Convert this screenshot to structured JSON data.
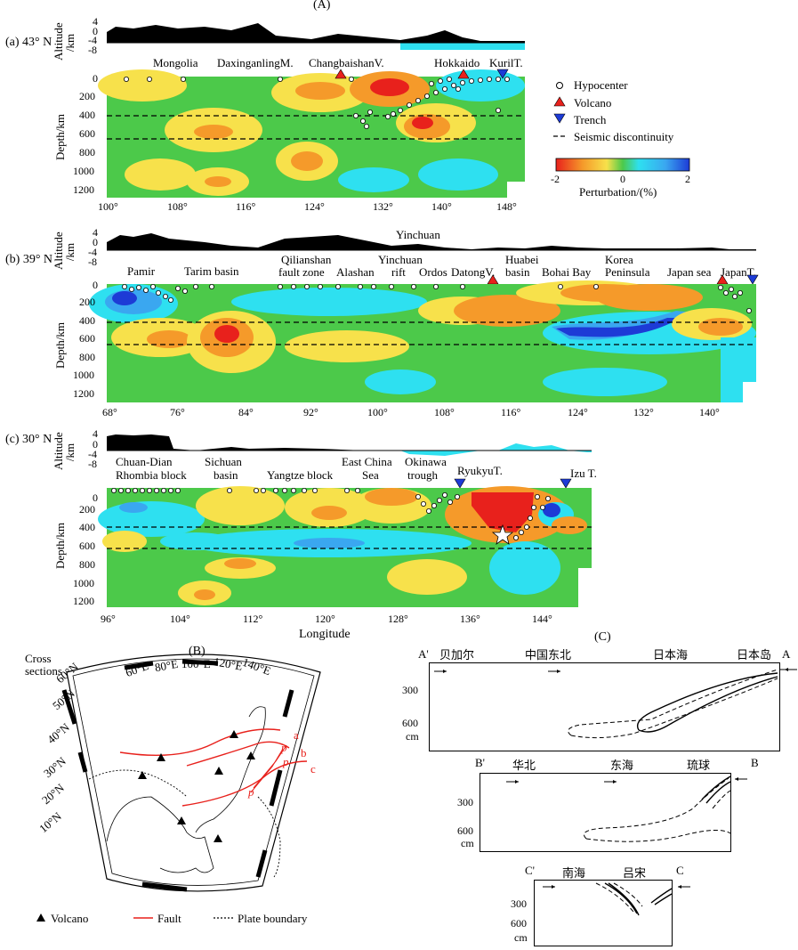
{
  "figure_labels": {
    "A": "(A)",
    "B": "(B)",
    "C": "(C)"
  },
  "panel_a": {
    "label": "(a) 43° N",
    "altitude_label": "Altitude\n/km",
    "altitude_ticks": [
      "4",
      "0",
      "-4",
      "-8"
    ],
    "depth_ticks": [
      "0",
      "200",
      "400",
      "600",
      "800",
      "1000",
      "1200"
    ],
    "depth_label": "Depth/km",
    "lon_ticks": [
      "100°",
      "108°",
      "116°",
      "124°",
      "132°",
      "140°",
      "148°"
    ],
    "places": [
      "Mongolia",
      "DaxinganlingM.",
      "ChangbaishanV.",
      "Hokkaido",
      "KurilT."
    ]
  },
  "legend": {
    "hypocenter": "Hypocenter",
    "volcano": "Volcano",
    "trench": "Trench",
    "discontinuity": "Seismic discontinuity",
    "scale_ticks": [
      "-2",
      "0",
      "2"
    ],
    "scale_label": "Perturbation/(%)"
  },
  "panel_b": {
    "label": "(b) 39° N",
    "altitude_ticks": [
      "4",
      "0",
      "-4",
      "-8"
    ],
    "depth_ticks": [
      "0",
      "200",
      "400",
      "600",
      "800",
      "1000",
      "1200"
    ],
    "depth_label": "Depth/km",
    "lon_ticks": [
      "68°",
      "76°",
      "84°",
      "92°",
      "100°",
      "108°",
      "116°",
      "124°",
      "132°",
      "140°"
    ],
    "places": {
      "pamir": "Pamir",
      "tarim": "Tarim basin",
      "qilian1": "Qilianshan",
      "qilian2": "fault zone",
      "alashan": "Alashan",
      "yinchuan_top": "Yinchuan",
      "yinchuan1": "Yinchuan",
      "yinchuan2": "rift",
      "ordos": "Ordos",
      "datong": "DatongV.",
      "huabei1": "Huabei",
      "huabei2": "basin",
      "bohai": "Bohai Bay",
      "korea1": "Korea",
      "korea2": "Peninsula",
      "japansea": "Japan sea",
      "japant": "JapanT."
    }
  },
  "panel_c": {
    "label": "(c) 30° N",
    "altitude_ticks": [
      "4",
      "0",
      "-4",
      "-8"
    ],
    "depth_ticks": [
      "0",
      "200",
      "400",
      "600",
      "800",
      "1000",
      "1200"
    ],
    "depth_label": "Depth/km",
    "lon_ticks": [
      "96°",
      "104°",
      "112°",
      "120°",
      "128°",
      "136°",
      "144°"
    ],
    "xlabel": "Longitude",
    "places": {
      "cd1": "Chuan-Dian",
      "cd2": "Rhombia block",
      "sc1": "Sichuan",
      "sc2": "basin",
      "yangtze": "Yangtze block",
      "ecs1": "East China",
      "ecs2": "Sea",
      "ok1": "Okinawa",
      "ok2": "trough",
      "ryukyu": "RyukyuT.",
      "izu": "Izu T."
    }
  },
  "map": {
    "title1": "Cross",
    "title2": "sections",
    "lat_labels": [
      "60°N",
      "50°N",
      "40°N",
      "30°N",
      "20°N",
      "10°N"
    ],
    "lon_labels": [
      "60°E",
      "80°E",
      "100°E",
      "120°E",
      "140°E"
    ],
    "section_labels": [
      "a",
      "b",
      "c"
    ],
    "p_labels": [
      "p",
      "p",
      "p"
    ],
    "legend_volcano": "Volcano",
    "legend_fault": "Fault",
    "legend_plate": "Plate boundary"
  },
  "schematic": {
    "top": {
      "left": "A'",
      "right": "A",
      "places": [
        "贝加尔",
        "中国东北",
        "日本海",
        "日本岛"
      ],
      "ticks": [
        "300",
        "600"
      ],
      "unit": "cm"
    },
    "mid": {
      "left": "B'",
      "right": "B",
      "places": [
        "华北",
        "东海",
        "琉球"
      ],
      "ticks": [
        "300",
        "600"
      ],
      "unit": "cm"
    },
    "bot": {
      "left": "C'",
      "right": "C",
      "places": [
        "南海",
        "吕宋"
      ],
      "ticks": [
        "300",
        "600"
      ],
      "unit": "cm"
    }
  },
  "colors": {
    "red": "#e8211c",
    "orange": "#f59a2a",
    "yellow": "#f7e14b",
    "green": "#4cc94a",
    "cyan": "#2ee0f0",
    "blue": "#2f6fe0"
  }
}
